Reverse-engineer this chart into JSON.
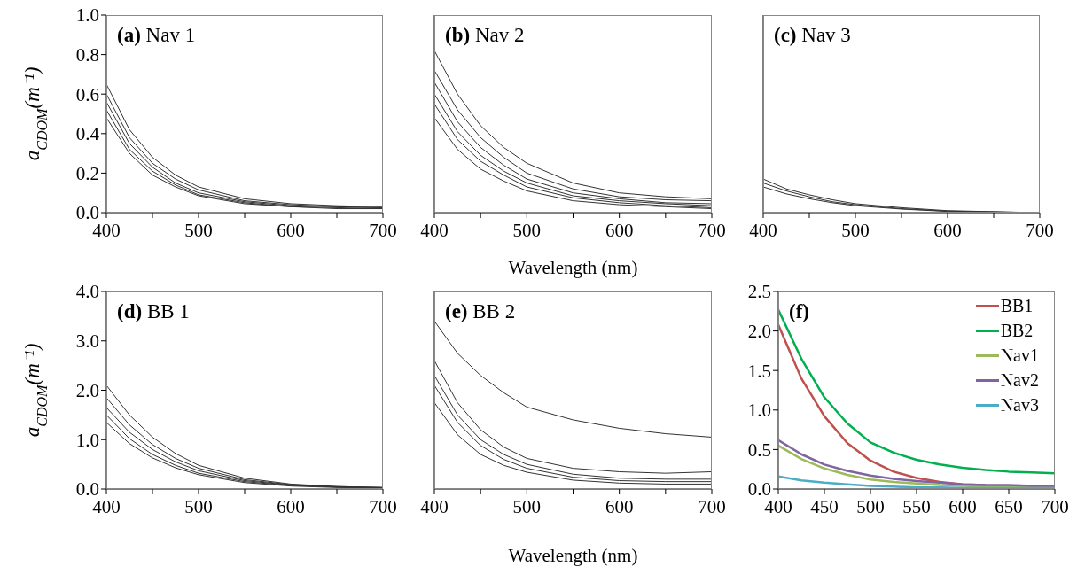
{
  "chart_data": [
    {
      "type": "line",
      "title": "(a) Nav 1",
      "ylabel": "a$_{CDOM}$(m⁻¹)",
      "x": [
        400,
        425,
        450,
        475,
        500,
        550,
        600,
        650,
        700
      ],
      "xlim": [
        400,
        700
      ],
      "xticks": [
        400,
        {
          "value": 450,
          "label": null
        },
        500,
        {
          "value": 550,
          "label": null
        },
        600,
        {
          "value": 650,
          "label": null
        },
        700
      ],
      "ylim": [
        0,
        1
      ],
      "yticks": [
        {
          "value": 0,
          "label": "0.0"
        },
        {
          "value": 0.2,
          "label": "0.2"
        },
        {
          "value": 0.4,
          "label": "0.4"
        },
        {
          "value": 0.6,
          "label": "0.6"
        },
        {
          "value": 0.8,
          "label": "0.8"
        },
        {
          "value": 1,
          "label": "1.0"
        }
      ],
      "marker": "none",
      "line_style": "solid",
      "series": [
        {
          "color": "#333333",
          "values": [
            0.65,
            0.42,
            0.28,
            0.19,
            0.13,
            0.07,
            0.045,
            0.035,
            0.03
          ]
        },
        {
          "color": "#333333",
          "values": [
            0.6,
            0.38,
            0.25,
            0.17,
            0.115,
            0.06,
            0.04,
            0.03,
            0.025
          ]
        },
        {
          "color": "#333333",
          "values": [
            0.56,
            0.35,
            0.23,
            0.15,
            0.1,
            0.055,
            0.035,
            0.03,
            0.025
          ]
        },
        {
          "color": "#333333",
          "values": [
            0.52,
            0.32,
            0.21,
            0.14,
            0.09,
            0.05,
            0.03,
            0.025,
            0.02
          ]
        },
        {
          "color": "#333333",
          "values": [
            0.48,
            0.3,
            0.19,
            0.13,
            0.085,
            0.045,
            0.03,
            0.02,
            0.02
          ]
        }
      ]
    },
    {
      "type": "line",
      "title": "(b) Nav 2",
      "xlabel": "Wavelength (nm)",
      "x": [
        400,
        425,
        450,
        475,
        500,
        550,
        600,
        650,
        700
      ],
      "xlim": [
        400,
        700
      ],
      "xticks": [
        400,
        {
          "value": 450,
          "label": null
        },
        500,
        {
          "value": 550,
          "label": null
        },
        600,
        {
          "value": 650,
          "label": null
        },
        700
      ],
      "ylim": [
        0,
        1
      ],
      "yticks": [
        {
          "value": 0,
          "label": null
        },
        {
          "value": 0.2,
          "label": null
        },
        {
          "value": 0.4,
          "label": null
        },
        {
          "value": 0.6,
          "label": null
        },
        {
          "value": 0.8,
          "label": null
        },
        {
          "value": 1,
          "label": null
        }
      ],
      "tick_labels": "x",
      "marker": "none",
      "line_style": "solid",
      "series": [
        {
          "color": "#333333",
          "values": [
            0.82,
            0.6,
            0.44,
            0.33,
            0.25,
            0.15,
            0.1,
            0.08,
            0.07
          ]
        },
        {
          "color": "#333333",
          "values": [
            0.72,
            0.52,
            0.38,
            0.28,
            0.2,
            0.12,
            0.08,
            0.065,
            0.06
          ]
        },
        {
          "color": "#333333",
          "values": [
            0.66,
            0.46,
            0.33,
            0.24,
            0.17,
            0.1,
            0.07,
            0.05,
            0.045
          ]
        },
        {
          "color": "#333333",
          "values": [
            0.6,
            0.41,
            0.29,
            0.21,
            0.15,
            0.085,
            0.06,
            0.045,
            0.035
          ]
        },
        {
          "color": "#333333",
          "values": [
            0.55,
            0.37,
            0.26,
            0.19,
            0.13,
            0.075,
            0.05,
            0.035,
            0.025
          ]
        },
        {
          "color": "#333333",
          "values": [
            0.48,
            0.32,
            0.22,
            0.16,
            0.11,
            0.06,
            0.04,
            0.03,
            0.02
          ]
        }
      ]
    },
    {
      "type": "line",
      "title": "(c) Nav 3",
      "x": [
        400,
        425,
        450,
        475,
        500,
        550,
        600,
        650,
        700
      ],
      "xlim": [
        400,
        700
      ],
      "xticks": [
        400,
        {
          "value": 450,
          "label": null
        },
        500,
        {
          "value": 550,
          "label": null
        },
        600,
        {
          "value": 650,
          "label": null
        },
        700
      ],
      "ylim": [
        0,
        1
      ],
      "yticks": [
        {
          "value": 0,
          "label": null
        },
        {
          "value": 0.2,
          "label": null
        },
        {
          "value": 0.4,
          "label": null
        },
        {
          "value": 0.6,
          "label": null
        },
        {
          "value": 0.8,
          "label": null
        },
        {
          "value": 1,
          "label": null
        }
      ],
      "tick_labels": "x",
      "marker": "none",
      "line_style": "solid",
      "series": [
        {
          "color": "#333333",
          "values": [
            0.17,
            0.12,
            0.09,
            0.065,
            0.045,
            0.025,
            0.01,
            0.005,
            0
          ]
        },
        {
          "color": "#333333",
          "values": [
            0.15,
            0.11,
            0.08,
            0.055,
            0.04,
            0.02,
            0.008,
            0.004,
            0
          ]
        },
        {
          "color": "#333333",
          "values": [
            0.13,
            0.095,
            0.07,
            0.05,
            0.035,
            0.018,
            0.006,
            0.003,
            0
          ]
        }
      ]
    },
    {
      "type": "line",
      "title": "(d) BB 1",
      "ylabel": "a$_{CDOM}$(m⁻¹)",
      "x": [
        400,
        425,
        450,
        475,
        500,
        550,
        600,
        650,
        700
      ],
      "xlim": [
        400,
        700
      ],
      "xticks": [
        400,
        {
          "value": 450,
          "label": null
        },
        500,
        {
          "value": 550,
          "label": null
        },
        600,
        {
          "value": 650,
          "label": null
        },
        700
      ],
      "ylim": [
        0,
        4
      ],
      "yticks": [
        {
          "value": 0,
          "label": "0.0"
        },
        {
          "value": 1,
          "label": "1.0"
        },
        {
          "value": 2,
          "label": "2.0"
        },
        {
          "value": 3,
          "label": "3.0"
        },
        {
          "value": 4,
          "label": "4.0"
        }
      ],
      "marker": "none",
      "line_style": "solid",
      "series": [
        {
          "color": "#333333",
          "values": [
            2.1,
            1.5,
            1.05,
            0.72,
            0.48,
            0.22,
            0.1,
            0.05,
            0.03
          ]
        },
        {
          "color": "#333333",
          "values": [
            1.85,
            1.3,
            0.9,
            0.62,
            0.42,
            0.19,
            0.09,
            0.05,
            0.03
          ]
        },
        {
          "color": "#333333",
          "values": [
            1.65,
            1.15,
            0.8,
            0.55,
            0.37,
            0.17,
            0.08,
            0.04,
            0.03
          ]
        },
        {
          "color": "#333333",
          "values": [
            1.5,
            1.02,
            0.7,
            0.48,
            0.32,
            0.15,
            0.07,
            0.04,
            0.02
          ]
        },
        {
          "color": "#333333",
          "values": [
            1.35,
            0.92,
            0.63,
            0.43,
            0.29,
            0.13,
            0.06,
            0.03,
            0.02
          ]
        }
      ]
    },
    {
      "type": "line",
      "title": "(e) BB 2",
      "xlabel": "Wavelength (nm)",
      "x": [
        400,
        425,
        450,
        475,
        500,
        550,
        600,
        650,
        700
      ],
      "xlim": [
        400,
        700
      ],
      "xticks": [
        400,
        {
          "value": 450,
          "label": null
        },
        500,
        {
          "value": 550,
          "label": null
        },
        600,
        {
          "value": 650,
          "label": null
        },
        700
      ],
      "ylim": [
        0,
        4
      ],
      "yticks": [
        {
          "value": 0,
          "label": null
        },
        {
          "value": 1,
          "label": null
        },
        {
          "value": 2,
          "label": null
        },
        {
          "value": 3,
          "label": null
        },
        {
          "value": 4,
          "label": null
        }
      ],
      "tick_labels": "x",
      "marker": "none",
      "line_style": "solid",
      "series": [
        {
          "color": "#333333",
          "values": [
            3.4,
            2.75,
            2.3,
            1.95,
            1.66,
            1.4,
            1.23,
            1.12,
            1.05
          ]
        },
        {
          "color": "#333333",
          "values": [
            2.6,
            1.75,
            1.2,
            0.85,
            0.62,
            0.42,
            0.35,
            0.32,
            0.35
          ]
        },
        {
          "color": "#333333",
          "values": [
            2.3,
            1.5,
            1,
            0.7,
            0.5,
            0.3,
            0.22,
            0.2,
            0.2
          ]
        },
        {
          "color": "#333333",
          "values": [
            2.1,
            1.35,
            0.88,
            0.6,
            0.42,
            0.24,
            0.17,
            0.15,
            0.15
          ]
        },
        {
          "color": "#333333",
          "values": [
            1.75,
            1.1,
            0.7,
            0.48,
            0.34,
            0.18,
            0.12,
            0.1,
            0.1
          ]
        }
      ]
    },
    {
      "type": "line",
      "title": "(f)",
      "x": [
        400,
        425,
        450,
        475,
        500,
        525,
        550,
        575,
        600,
        625,
        650,
        675,
        700
      ],
      "xlim": [
        400,
        700
      ],
      "xticks": [
        400,
        450,
        500,
        550,
        600,
        650,
        700
      ],
      "ylim": [
        0,
        2.5
      ],
      "yticks": [
        {
          "value": 0,
          "label": "0.0"
        },
        {
          "value": 0.5,
          "label": "0.5"
        },
        {
          "value": 1,
          "label": "1.0"
        },
        {
          "value": 1.5,
          "label": "1.5"
        },
        {
          "value": 2,
          "label": "2.0"
        },
        {
          "value": 2.5,
          "label": "2.5"
        }
      ],
      "legend": "top right",
      "marker": "none",
      "line_style": "solid",
      "series": [
        {
          "name": "BB1",
          "color": "#c0504d",
          "values": [
            2.08,
            1.4,
            0.92,
            0.58,
            0.36,
            0.22,
            0.14,
            0.09,
            0.06,
            0.05,
            null,
            null,
            null
          ]
        },
        {
          "name": "BB2",
          "color": "#00b050",
          "values": [
            2.27,
            1.65,
            1.16,
            0.83,
            0.59,
            0.46,
            0.37,
            0.31,
            0.27,
            0.24,
            0.22,
            0.21,
            0.2
          ]
        },
        {
          "name": "Nav1",
          "color": "#9bbb59",
          "values": [
            0.55,
            0.38,
            0.26,
            0.18,
            0.12,
            0.09,
            0.07,
            0.05,
            0.04,
            0.03,
            0.03,
            0.03,
            0.03
          ]
        },
        {
          "name": "Nav2",
          "color": "#8064a2",
          "values": [
            0.62,
            0.44,
            0.31,
            0.23,
            0.17,
            0.13,
            0.1,
            0.08,
            0.06,
            0.05,
            0.05,
            0.04,
            0.04
          ]
        },
        {
          "name": "Nav3",
          "color": "#4bacc6",
          "values": [
            0.16,
            0.11,
            0.08,
            0.06,
            0.04,
            0.03,
            0.02,
            0.02,
            0.01,
            0.01,
            0.01,
            0.01,
            0.01
          ]
        }
      ]
    }
  ]
}
